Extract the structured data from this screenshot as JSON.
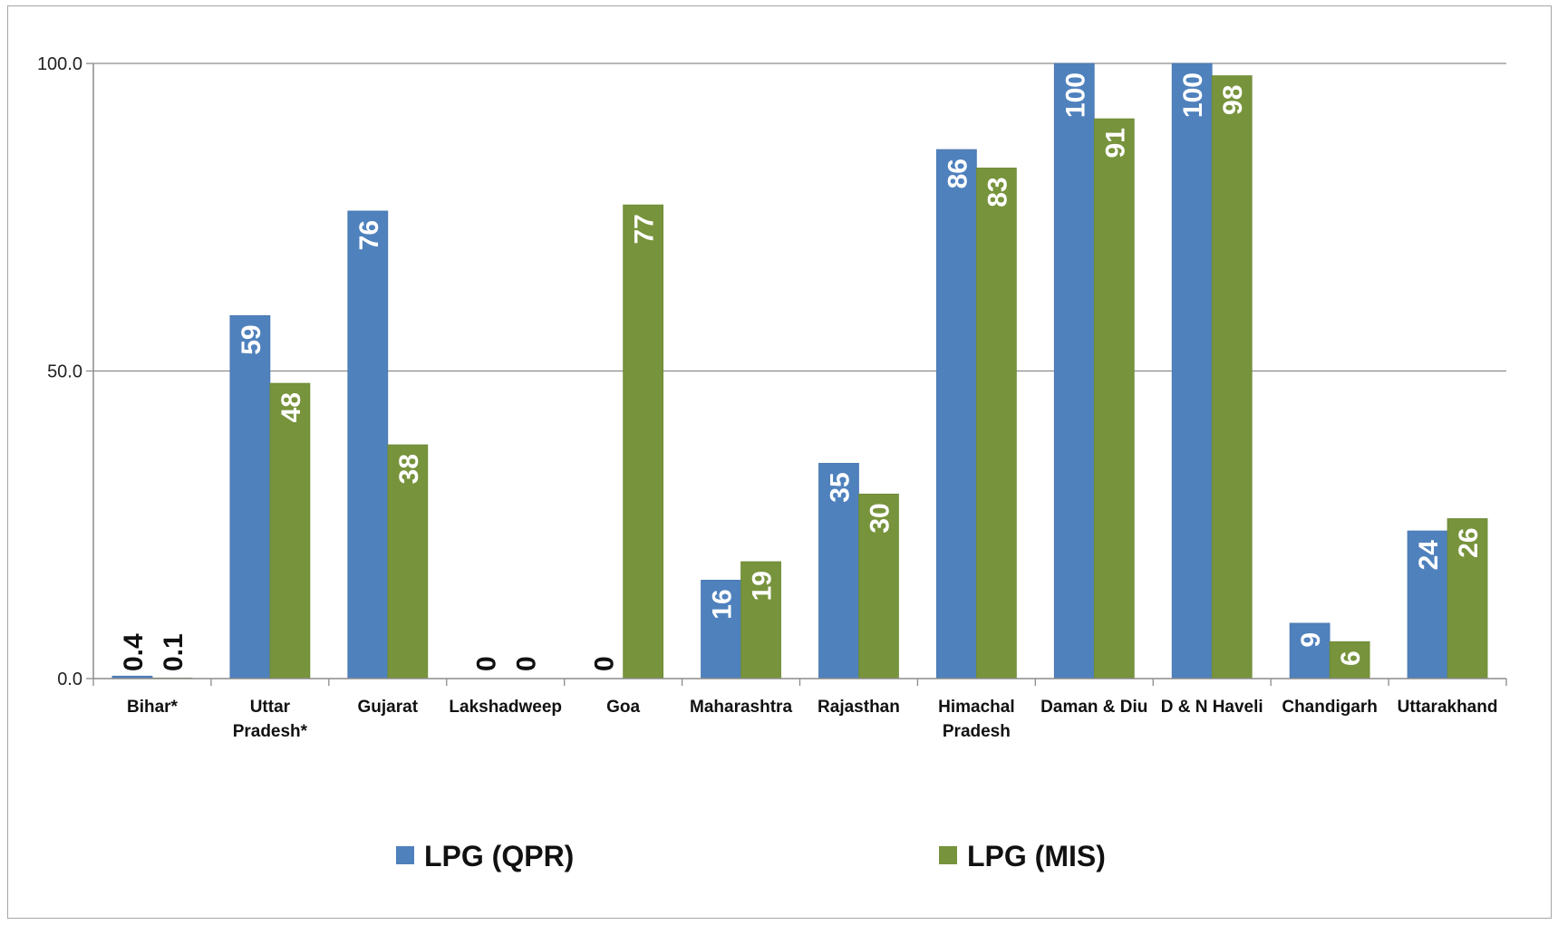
{
  "chart_data": {
    "type": "bar",
    "title": "",
    "xlabel": "",
    "ylabel": "",
    "ylim": [
      0,
      100
    ],
    "yticks": [
      "0.0",
      "50.0",
      "100.0"
    ],
    "grid": true,
    "legend_position": "bottom",
    "categories": [
      [
        "Bihar*"
      ],
      [
        "Uttar",
        "Pradesh*"
      ],
      [
        "Gujarat"
      ],
      [
        "Lakshadweep"
      ],
      [
        "Goa"
      ],
      [
        "Maharashtra"
      ],
      [
        "Rajasthan"
      ],
      [
        "Himachal",
        "Pradesh"
      ],
      [
        "Daman & Diu"
      ],
      [
        "D & N Haveli"
      ],
      [
        "Chandigarh"
      ],
      [
        "Uttarakhand"
      ]
    ],
    "series": [
      {
        "name": "LPG (QPR)",
        "color": "#4f81bd",
        "values": [
          0.4,
          59,
          76,
          0,
          0,
          16,
          35,
          86,
          100,
          100,
          9,
          24
        ],
        "labels": [
          "0.4",
          "59",
          "76",
          "0",
          "0",
          "16",
          "35",
          "86",
          "100",
          "100",
          "9",
          "24"
        ]
      },
      {
        "name": "LPG (MIS)",
        "color": "#77933c",
        "values": [
          0.1,
          48,
          38,
          0,
          77,
          19,
          30,
          83,
          91,
          98,
          6,
          26
        ],
        "labels": [
          "0.1",
          "48",
          "38",
          "0",
          "77",
          "19",
          "30",
          "83",
          "91",
          "98",
          "6",
          "26"
        ]
      }
    ]
  }
}
